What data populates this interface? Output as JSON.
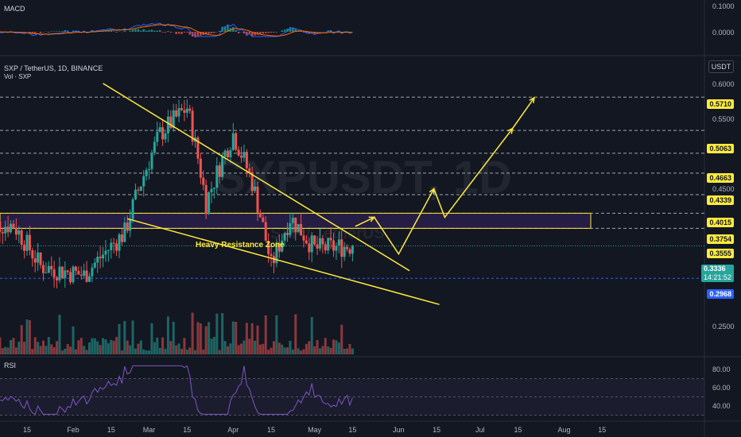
{
  "header": {
    "symbol": "SXP / TetherUS, 1D, BINANCE",
    "volume_label": "Vol · SXP",
    "currency_button": "USDT"
  },
  "watermark": {
    "symbol": "SXPUSDT, 1D",
    "subtitle": "SXP / TetherUS"
  },
  "annotation": {
    "zone_label": "Heavy Resistance Zone"
  },
  "macd": {
    "label": "MACD",
    "ticks": [
      "0.1000",
      "0.0000"
    ]
  },
  "rsi": {
    "label": "RSI",
    "ticks": [
      "80.00",
      "60.00",
      "40.00"
    ],
    "level_high": 70,
    "level_low": 30,
    "line_color": "#7e57c2"
  },
  "price_axis": {
    "ticks": [
      "0.6000",
      "0.5500",
      "0.4500",
      "0.2500"
    ],
    "current_price": "0.3336",
    "countdown": "14:21:52",
    "levels": [
      "0.5710",
      "0.5063",
      "0.4663",
      "0.4339",
      "0.4015",
      "0.3754",
      "0.3555"
    ],
    "support_level": "0.2968"
  },
  "time_axis": [
    "15",
    "Feb",
    "15",
    "Mar",
    "15",
    "Apr",
    "15",
    "May",
    "15",
    "Jun",
    "15",
    "Jul",
    "15",
    "Aug",
    "15"
  ],
  "colors": {
    "background": "#131722",
    "up": "#26a69a",
    "down": "#ef5350",
    "annotation": "#ffeb3b",
    "zone_fill": "#2a1f4a",
    "support": "#2962ff"
  },
  "chart_data": {
    "type": "candlestick",
    "title": "SXP / TetherUS, 1D, BINANCE",
    "y_scale": "log",
    "horizontal_levels": [
      0.571,
      0.5063,
      0.4663,
      0.4339,
      0.4015,
      0.3754,
      0.3555
    ],
    "resistance_zone": [
      0.3555,
      0.3754
    ],
    "support_level": 0.2968,
    "last_close": 0.3336,
    "key_closes": [
      {
        "date": "Jan 10",
        "close": 0.36
      },
      {
        "date": "Jan 20",
        "close": 0.31
      },
      {
        "date": "Feb 05",
        "close": 0.3
      },
      {
        "date": "Feb 20",
        "close": 0.35
      },
      {
        "date": "Mar 05",
        "close": 0.5
      },
      {
        "date": "Mar 15",
        "close": 0.55
      },
      {
        "date": "Mar 22",
        "close": 0.39
      },
      {
        "date": "Apr 01",
        "close": 0.5
      },
      {
        "date": "Apr 08",
        "close": 0.42
      },
      {
        "date": "Apr 15",
        "close": 0.31
      },
      {
        "date": "Apr 22",
        "close": 0.37
      },
      {
        "date": "May 01",
        "close": 0.33
      },
      {
        "date": "May 15",
        "close": 0.334
      }
    ],
    "macd_range": [
      -0.02,
      0.1
    ],
    "rsi_range": [
      30,
      85
    ]
  }
}
